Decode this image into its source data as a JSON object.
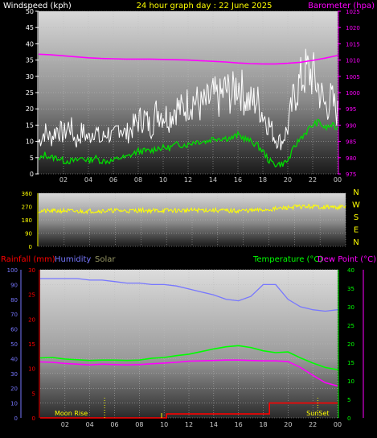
{
  "colors": {
    "windspeed": "#ffffff",
    "gust_fill": "#ffffff",
    "avg_wind": "#00dd00",
    "barometer": "#ff00ff",
    "wind_dir": "#ffff00",
    "rainfall": "#ff0000",
    "humidity": "#7777ff",
    "solar": "#999966",
    "temperature": "#00ff00",
    "dew_point": "#ff00ff",
    "title": "#ffff00"
  },
  "chart_data": [
    {
      "type": "line",
      "title": "24 hour graph day : 22 June 2025",
      "legend_left": "Windspeed (kph)",
      "legend_right": "Barometer (hpa)",
      "x_ticks": [
        "02",
        "04",
        "06",
        "08",
        "10",
        "12",
        "14",
        "16",
        "18",
        "20",
        "22",
        "00"
      ],
      "y_left_ticks": [
        "0",
        "5",
        "10",
        "15",
        "20",
        "25",
        "30",
        "35",
        "40",
        "45",
        "50"
      ],
      "y_left_range": [
        0,
        50
      ],
      "y_right_ticks": [
        "975",
        "980",
        "985",
        "990",
        "995",
        "1000",
        "1005",
        "1010",
        "1015",
        "1020",
        "1025"
      ],
      "y_right_range": [
        975,
        1025
      ],
      "grid": true,
      "series": [
        {
          "key": "windspeed",
          "x": [
            0,
            0.5,
            1,
            1.5,
            2,
            2.5,
            3,
            3.5,
            4,
            4.5,
            5,
            5.5,
            6,
            6.5,
            7,
            7.5,
            8,
            8.5,
            9,
            9.5,
            10,
            10.5,
            11,
            11.5,
            12,
            12.5,
            13,
            13.5,
            14,
            14.5,
            15,
            15.5,
            16,
            16.5,
            17,
            17.5,
            18,
            18.5,
            19,
            19.5,
            20,
            20.5,
            21,
            21.5,
            22,
            22.5,
            23,
            23.5,
            24
          ],
          "values": [
            9,
            12,
            10,
            13,
            11,
            14,
            9,
            12,
            10,
            13,
            9,
            12,
            10,
            14,
            11,
            13,
            15,
            16,
            13,
            18,
            17,
            16,
            19,
            18,
            20,
            21,
            19,
            20,
            22,
            21,
            24,
            22,
            26,
            22,
            20,
            21,
            17,
            14,
            10,
            9,
            13,
            22,
            26,
            29,
            28,
            24,
            19,
            21,
            17
          ]
        },
        {
          "key": "avg_wind",
          "x": [
            0,
            0.5,
            1,
            1.5,
            2,
            2.5,
            3,
            3.5,
            4,
            4.5,
            5,
            5.5,
            6,
            6.5,
            7,
            7.5,
            8,
            8.5,
            9,
            9.5,
            10,
            10.5,
            11,
            11.5,
            12,
            12.5,
            13,
            13.5,
            14,
            14.5,
            15,
            15.5,
            16,
            16.5,
            17,
            17.5,
            18,
            18.5,
            19,
            19.5,
            20,
            20.5,
            21,
            21.5,
            22,
            22.5,
            23,
            23.5,
            24
          ],
          "values": [
            4,
            6,
            5,
            5,
            4,
            4,
            4,
            5,
            4,
            5,
            4,
            4,
            4,
            5,
            5,
            6,
            7,
            7,
            7,
            8,
            8,
            8,
            9,
            9,
            9,
            10,
            10,
            10,
            11,
            11,
            11,
            11,
            12,
            11,
            10,
            9,
            7,
            4,
            3,
            3,
            4,
            8,
            11,
            13,
            15,
            16,
            14,
            15,
            14
          ]
        },
        {
          "key": "barometer",
          "axis": "right",
          "x": [
            0,
            1,
            2,
            3,
            4,
            5,
            6,
            7,
            8,
            9,
            10,
            11,
            12,
            13,
            14,
            15,
            16,
            17,
            18,
            19,
            20,
            21,
            22,
            23,
            24
          ],
          "values": [
            1011.8,
            1011.6,
            1011.3,
            1011.0,
            1010.7,
            1010.5,
            1010.4,
            1010.3,
            1010.3,
            1010.3,
            1010.2,
            1010.1,
            1010.0,
            1009.8,
            1009.6,
            1009.4,
            1009.1,
            1008.9,
            1008.8,
            1008.8,
            1009.0,
            1009.3,
            1009.9,
            1010.6,
            1011.4
          ]
        }
      ]
    },
    {
      "type": "scatter",
      "legend_right": [
        "N",
        "W",
        "S",
        "E",
        "N"
      ],
      "y_ticks": [
        "0",
        "90",
        "180",
        "270",
        "360"
      ],
      "y_range": [
        0,
        360
      ],
      "series": [
        {
          "key": "wind_dir",
          "x": [
            0,
            1,
            2,
            3,
            4,
            5,
            6,
            7,
            8,
            9,
            10,
            11,
            12,
            13,
            14,
            15,
            16,
            17,
            18,
            19,
            20,
            21,
            22,
            23,
            24
          ],
          "values": [
            240,
            238,
            242,
            236,
            240,
            240,
            243,
            240,
            245,
            242,
            244,
            243,
            245,
            246,
            244,
            240,
            242,
            244,
            250,
            258,
            268,
            270,
            268,
            265,
            266
          ]
        }
      ]
    },
    {
      "type": "line",
      "legends_left": [
        "Rainfall (mm)",
        "Humidity",
        "Solar"
      ],
      "legends_right": [
        "Temperature (°C)",
        "Dew Point (°C)"
      ],
      "annotations": [
        "Moon Rise",
        "SunSet"
      ],
      "y_hum_ticks": [
        "0",
        "10",
        "20",
        "30",
        "40",
        "50",
        "60",
        "70",
        "80",
        "90",
        "100"
      ],
      "y_hum_range": [
        0,
        100
      ],
      "y_rain_ticks": [
        "0",
        "5",
        "10",
        "15",
        "20",
        "25",
        "30"
      ],
      "y_rain_range": [
        0,
        30
      ],
      "y_temp_ticks": [
        "0",
        "5",
        "10",
        "15",
        "20",
        "25",
        "30",
        "35",
        "40"
      ],
      "y_temp_range": [
        0,
        40
      ],
      "series": [
        {
          "key": "humidity",
          "axis": "hum",
          "x": [
            0,
            1,
            2,
            3,
            4,
            5,
            6,
            7,
            8,
            9,
            10,
            11,
            12,
            13,
            14,
            15,
            16,
            17,
            18,
            19,
            20,
            21,
            22,
            23,
            24
          ],
          "values": [
            94,
            94,
            94,
            94,
            93,
            93,
            92,
            91,
            91,
            90,
            90,
            89,
            87,
            85,
            83,
            80,
            79,
            82,
            90,
            90,
            80,
            75,
            73,
            72,
            73
          ]
        },
        {
          "key": "temperature",
          "axis": "temp",
          "x": [
            0,
            1,
            2,
            3,
            4,
            5,
            6,
            7,
            8,
            9,
            10,
            11,
            12,
            13,
            14,
            15,
            16,
            17,
            18,
            19,
            20,
            21,
            22,
            23,
            24
          ],
          "values": [
            16.2,
            16.3,
            15.9,
            15.7,
            15.5,
            15.6,
            15.6,
            15.5,
            15.6,
            16.1,
            16.3,
            16.8,
            17.2,
            17.9,
            18.6,
            19.2,
            19.5,
            19.0,
            18.1,
            17.6,
            17.8,
            16.2,
            14.8,
            13.6,
            13.0
          ]
        },
        {
          "key": "dew_point",
          "axis": "temp",
          "x": [
            0,
            1,
            2,
            3,
            4,
            5,
            6,
            7,
            8,
            9,
            10,
            11,
            12,
            13,
            14,
            15,
            16,
            17,
            18,
            19,
            20,
            21,
            22,
            23,
            24
          ],
          "values": [
            15.1,
            15.0,
            14.7,
            14.5,
            14.3,
            14.5,
            14.4,
            14.3,
            14.4,
            14.6,
            14.8,
            15.0,
            15.3,
            15.4,
            15.5,
            15.6,
            15.6,
            15.5,
            15.4,
            15.4,
            15.2,
            13.6,
            11.5,
            9.5,
            8.6
          ]
        },
        {
          "key": "rainfall",
          "axis": "rain",
          "x": [
            0,
            10.2,
            10.2,
            18.5,
            18.5,
            24
          ],
          "values": [
            0,
            0,
            0.8,
            0.8,
            3,
            3
          ]
        }
      ]
    }
  ]
}
